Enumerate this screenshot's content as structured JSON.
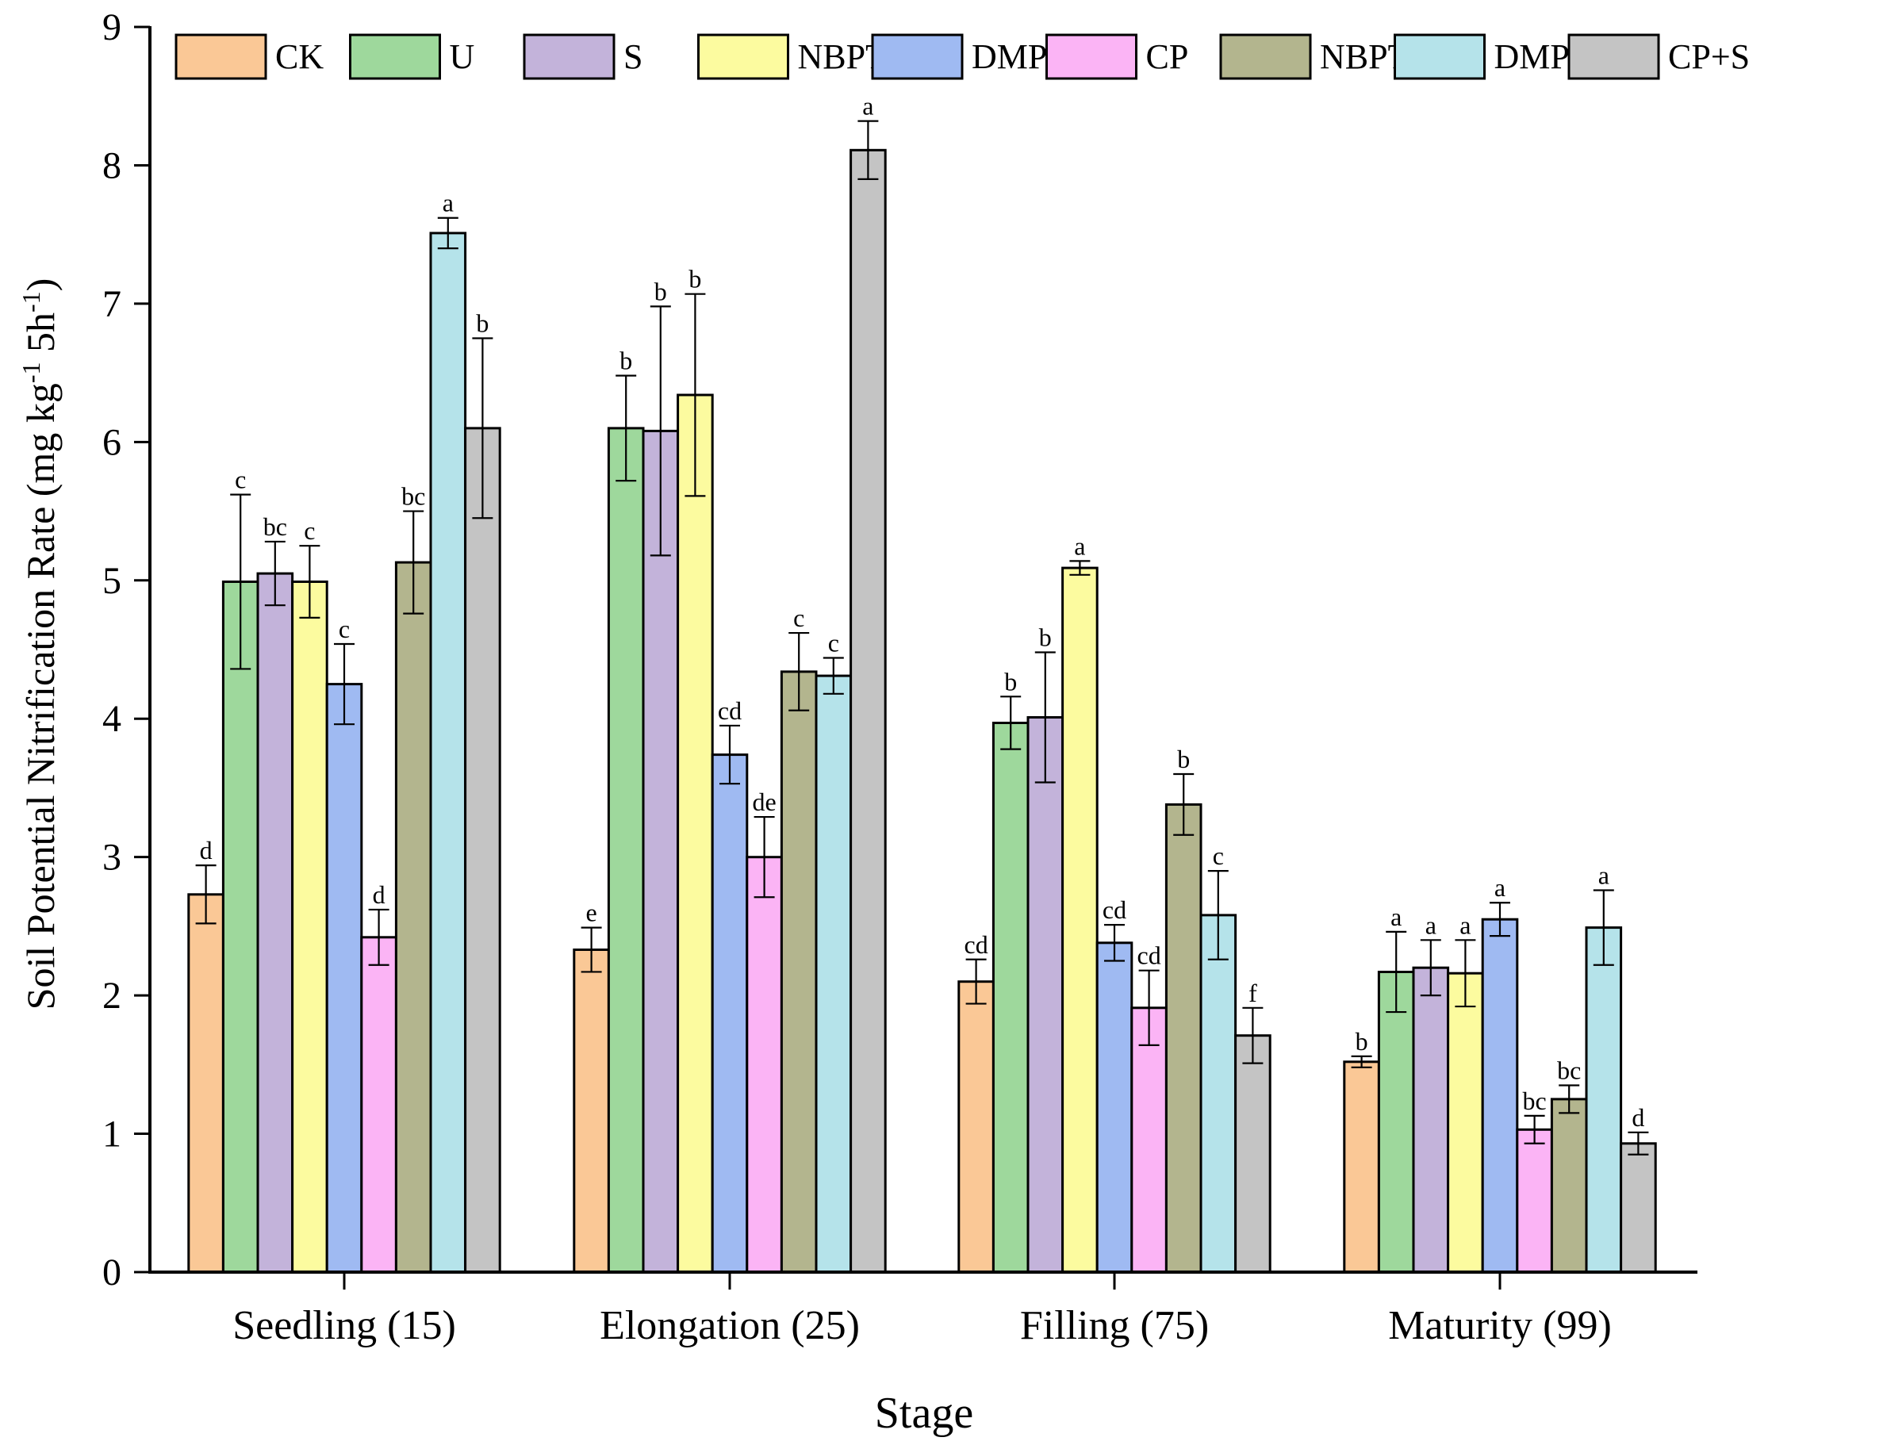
{
  "chart_data": {
    "type": "bar",
    "title": "",
    "xlabel": "Stage",
    "ylabel": {
      "main": "Soil Potential Nitrification Rate (mg kg",
      "sup1": "-1",
      "mid": " 5h",
      "sup2": "-1",
      "end": ")"
    },
    "ylim": [
      0,
      9
    ],
    "yticks": [
      "0",
      "1",
      "2",
      "3",
      "4",
      "5",
      "6",
      "7",
      "8",
      "9"
    ],
    "categories": [
      "Seedling (15)",
      "Elongation (25)",
      "Filling (75)",
      "Maturity (99)"
    ],
    "legend_position": "top",
    "series": [
      {
        "name": "CK",
        "color": "#FAC896",
        "values": [
          2.73,
          2.33,
          2.1,
          1.52
        ],
        "errors": [
          0.21,
          0.16,
          0.16,
          0.04
        ],
        "letters": [
          "d",
          "e",
          "cd",
          "b"
        ]
      },
      {
        "name": "U",
        "color": "#9ED89C",
        "values": [
          4.99,
          6.1,
          3.97,
          2.17
        ],
        "errors": [
          0.63,
          0.38,
          0.19,
          0.29
        ],
        "letters": [
          "c",
          "b",
          "b",
          "a"
        ]
      },
      {
        "name": "S",
        "color": "#C3B3DA",
        "values": [
          5.05,
          6.08,
          4.01,
          2.2
        ],
        "errors": [
          0.23,
          0.9,
          0.47,
          0.2
        ],
        "letters": [
          "bc",
          "b",
          "b",
          "a"
        ]
      },
      {
        "name": "NBPT",
        "color": "#FCFB9F",
        "values": [
          4.99,
          6.34,
          5.09,
          2.16
        ],
        "errors": [
          0.26,
          0.73,
          0.05,
          0.24
        ],
        "letters": [
          "c",
          "b",
          "a",
          "a"
        ]
      },
      {
        "name": "DMPP",
        "color": "#9FBAF2",
        "values": [
          4.25,
          3.74,
          2.38,
          2.55
        ],
        "errors": [
          0.29,
          0.21,
          0.13,
          0.12
        ],
        "letters": [
          "c",
          "cd",
          "cd",
          "a"
        ]
      },
      {
        "name": "CP",
        "color": "#FBB4F5",
        "values": [
          2.42,
          3.0,
          1.91,
          1.03
        ],
        "errors": [
          0.2,
          0.29,
          0.27,
          0.1
        ],
        "letters": [
          "d",
          "de",
          "cd",
          "bc"
        ]
      },
      {
        "name": "NBPT+S",
        "color": "#B3B58E",
        "values": [
          5.13,
          4.34,
          3.38,
          1.25
        ],
        "errors": [
          0.37,
          0.28,
          0.22,
          0.1
        ],
        "letters": [
          "bc",
          "c",
          "b",
          "bc"
        ]
      },
      {
        "name": "DMPP+S",
        "color": "#B5E3EA",
        "values": [
          7.51,
          4.31,
          2.58,
          2.49
        ],
        "errors": [
          0.11,
          0.13,
          0.32,
          0.27
        ],
        "letters": [
          "a",
          "c",
          "c",
          "a"
        ]
      },
      {
        "name": "CP+S",
        "color": "#C4C4C4",
        "values": [
          6.1,
          8.11,
          1.71,
          0.93
        ],
        "errors": [
          0.65,
          0.21,
          0.2,
          0.08
        ],
        "letters": [
          "b",
          "a",
          "f",
          "d"
        ]
      }
    ]
  }
}
